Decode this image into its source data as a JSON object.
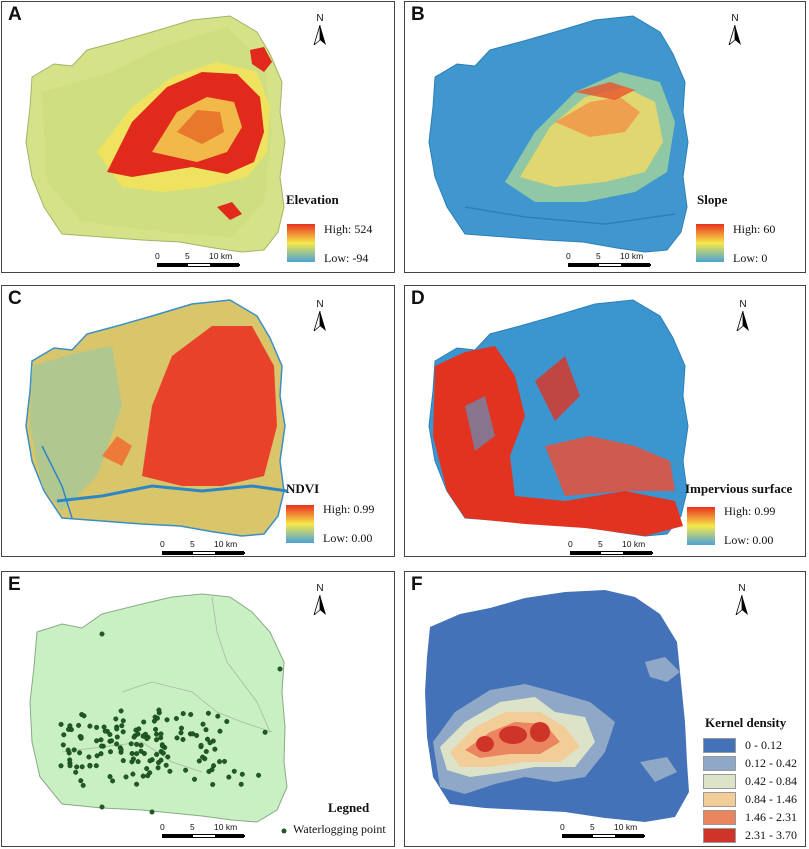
{
  "panels": {
    "A": {
      "label": "A",
      "legend_title": "Elevation",
      "high": "High: 524",
      "low": "Low: -94"
    },
    "B": {
      "label": "B",
      "legend_title": "Slope",
      "high": "High: 60",
      "low": "Low: 0"
    },
    "C": {
      "label": "C",
      "legend_title": "NDVI",
      "high": "High:  0.99",
      "low": "Low: 0.00"
    },
    "D": {
      "label": "D",
      "legend_title": "Impervious surface",
      "high": "High: 0.99",
      "low": "Low: 0.00"
    },
    "E": {
      "label": "E",
      "legend_title": "Legned",
      "point_label": "Waterlogging point"
    },
    "F": {
      "label": "F",
      "legend_title": "Kernel density",
      "classes": [
        {
          "range": "0 - 0.12",
          "color": "#4472b8"
        },
        {
          "range": "0.12 - 0.42",
          "color": "#8fa8c8"
        },
        {
          "range": "0.42 - 0.84",
          "color": "#dde3c9"
        },
        {
          "range": "0.84 - 1.46",
          "color": "#f3cd98"
        },
        {
          "range": "1.46 - 2.31",
          "color": "#ea8560"
        },
        {
          "range": "2.31 - 3.70",
          "color": "#cf3429"
        }
      ]
    }
  },
  "north_label": "N",
  "scale": {
    "t0": "0",
    "t1": "5",
    "t2": "10 km"
  },
  "colors": {
    "elevation_ramp": [
      "#e8311f",
      "#f6e74a",
      "#4aa3d6"
    ],
    "slope_ramp": [
      "#e8311f",
      "#f6e74a",
      "#4aa3d6"
    ],
    "ndvi_ramp": [
      "#e8311f",
      "#f6e74a",
      "#4aa3d6"
    ],
    "impervious_ramp": [
      "#e8311f",
      "#f6e74a",
      "#4aa3d6"
    ],
    "low_land": "#c9dc82",
    "mid_land": "#e6e05a",
    "high_land": "#e12a1c",
    "water_blue": "#3a9ad0",
    "study_area_green": "#c9f0c3",
    "point_green": "#1f5a24"
  }
}
